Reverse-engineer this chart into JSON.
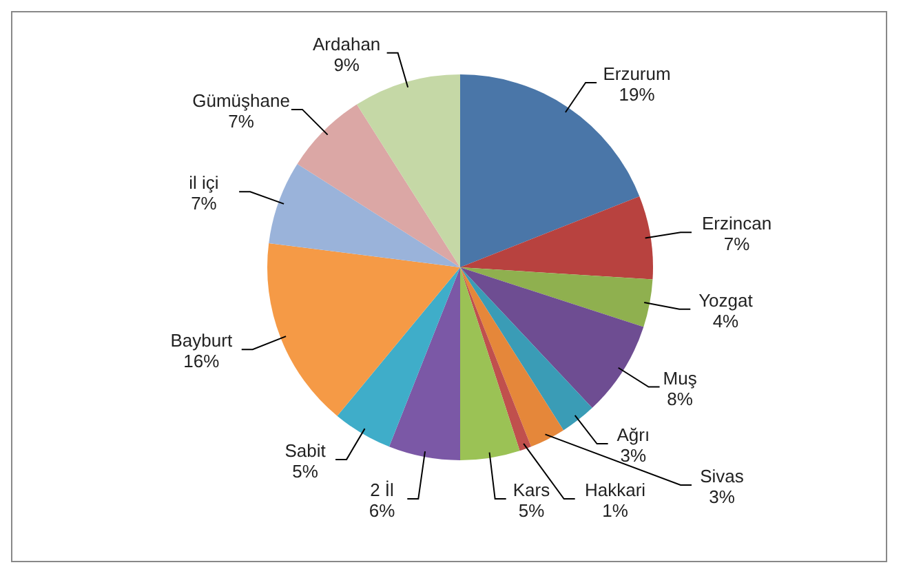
{
  "chart_data": {
    "type": "pie",
    "categories": [
      "Erzurum",
      "Erzincan",
      "Yozgat",
      "Muş",
      "Ağrı",
      "Sivas",
      "Hakkari",
      "Kars",
      "2 İl",
      "Sabit",
      "Bayburt",
      "il içi",
      "Gümüşhane",
      "Ardahan"
    ],
    "values": [
      19,
      7,
      4,
      8,
      3,
      3,
      1,
      5,
      6,
      5,
      16,
      7,
      7,
      9
    ],
    "colors": [
      "#4a76a8",
      "#b8423f",
      "#8fb04f",
      "#6e4d92",
      "#3a9cb6",
      "#e5873a",
      "#c0504d",
      "#9bc255",
      "#7b58a6",
      "#3fadc9",
      "#f59a46",
      "#9ab3da",
      "#dba7a5",
      "#c5d8a6"
    ],
    "value_labels": [
      "19%",
      "7%",
      "4%",
      "8%",
      "3%",
      "3%",
      "1%",
      "5%",
      "6%",
      "5%",
      "16%",
      "7%",
      "7%",
      "9%"
    ]
  }
}
